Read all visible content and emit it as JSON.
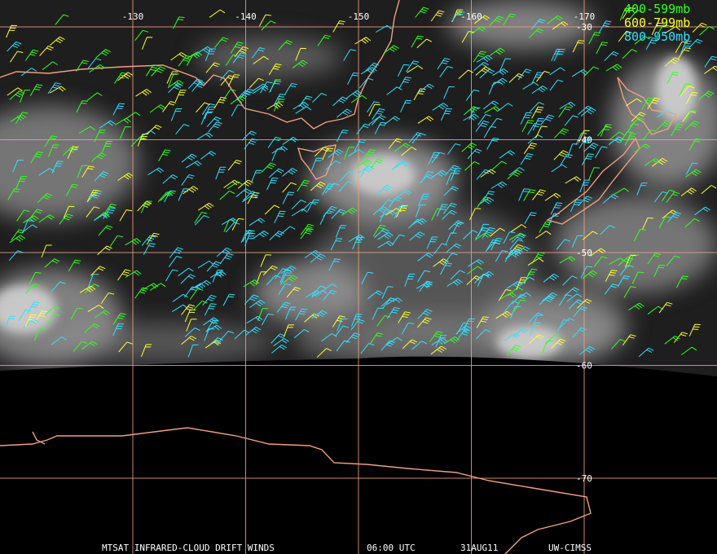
{
  "map": {
    "lon_lines": [
      -130,
      -140,
      -150,
      -160,
      -170
    ],
    "lat_lines": [
      -30,
      -40,
      -50,
      -60,
      -70
    ],
    "legend": [
      {
        "label": "400-599mb",
        "color": "#33ff22"
      },
      {
        "label": "600-799mb",
        "color": "#ffff33"
      },
      {
        "label": "800-950mb",
        "color": "#33e0ff"
      }
    ],
    "footer": [
      "MTSAT INFRARED-CLOUD DRIFT WINDS",
      "06:00 UTC",
      "31AUG11",
      "UW-CIMSS"
    ]
  }
}
